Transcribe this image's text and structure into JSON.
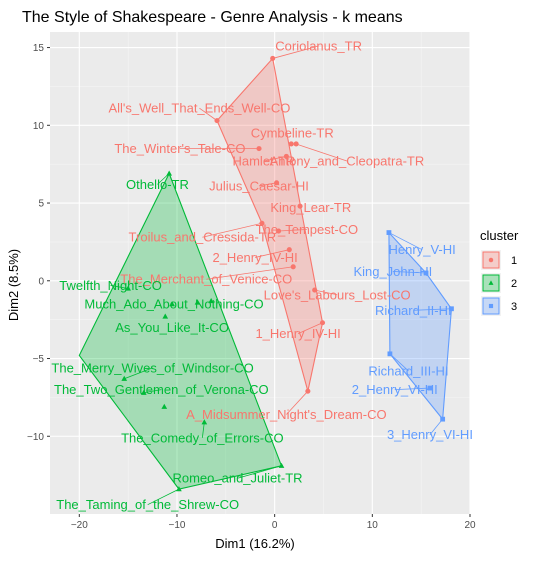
{
  "chart_data": {
    "type": "scatter",
    "title": "The Style of Shakespeare - Genre Analysis - k means",
    "xlabel": "Dim1 (16.2%)",
    "ylabel": "Dim2 (8.5%)",
    "xlim": [
      -23,
      20
    ],
    "ylim": [
      -15,
      16
    ],
    "xticks": [
      -20,
      -10,
      0,
      10,
      20
    ],
    "yticks": [
      -10,
      -5,
      0,
      5,
      10,
      15
    ],
    "grid": true,
    "legend": {
      "title": "cluster",
      "position": "right"
    },
    "series": [
      {
        "name": "1",
        "marker": "circle",
        "color": "#F8766D",
        "points": [
          {
            "label": "Coriolanus_TR",
            "x": -0.2,
            "y": 14.3,
            "lx": 4.5,
            "ly": 15.1
          },
          {
            "label": "All's_Well_That_Ends_Well-CO",
            "x": -5.9,
            "y": 10.3,
            "lx": -7.7,
            "ly": 11.1
          },
          {
            "label": "Cymbeline-TR",
            "x": 1.7,
            "y": 8.8,
            "lx": 1.8,
            "ly": 9.5
          },
          {
            "label": "The_Winter's_Tale-CO",
            "x": -1.6,
            "y": 8.5,
            "lx": -9.7,
            "ly": 8.5
          },
          {
            "label": "Hamlet-TR",
            "x": 1.2,
            "y": 8.0,
            "lx": -1.1,
            "ly": 7.7
          },
          {
            "label": "Antony_and_Cleopatra-TR",
            "x": 2.2,
            "y": 8.8,
            "lx": 7.4,
            "ly": 7.7
          },
          {
            "label": "Julius_Caesar-HI",
            "x": 0.2,
            "y": 6.3,
            "lx": -1.6,
            "ly": 6.1
          },
          {
            "label": "King_Lear-TR",
            "x": 2.6,
            "y": 4.8,
            "lx": 3.7,
            "ly": 4.7
          },
          {
            "label": "Troilus_and_Cressida-TR",
            "x": -1.3,
            "y": 3.7,
            "lx": -7.4,
            "ly": 2.8
          },
          {
            "label": "The_Tempest-CO",
            "x": 0.4,
            "y": 3.2,
            "lx": 3.3,
            "ly": 3.3
          },
          {
            "label": "2_Henry_IV-HI",
            "x": 1.5,
            "y": 2.0,
            "lx": -2.0,
            "ly": 1.5
          },
          {
            "label": "The_Merchant_of_Venice-CO",
            "x": 1.9,
            "y": 0.9,
            "lx": -7.0,
            "ly": 0.1
          },
          {
            "label": "Love's_Labours_Lost-CO",
            "x": 4.1,
            "y": -0.6,
            "lx": 6.4,
            "ly": -0.9
          },
          {
            "label": "1_Henry_IV-HI",
            "x": 4.9,
            "y": -2.7,
            "lx": 2.4,
            "ly": -3.4
          },
          {
            "label": "A_Midsummer_Night's_Dream-CO",
            "x": 3.4,
            "y": -7.1,
            "lx": 1.2,
            "ly": -8.6
          }
        ],
        "hull": [
          [
            -0.2,
            14.3
          ],
          [
            4.9,
            -2.7
          ],
          [
            3.4,
            -7.1
          ],
          [
            -1.3,
            3.7
          ],
          [
            -5.9,
            10.3
          ]
        ]
      },
      {
        "name": "2",
        "marker": "triangle",
        "color": "#00BA38",
        "points": [
          {
            "label": "Othello-TR",
            "x": -10.8,
            "y": 6.9,
            "lx": -12.0,
            "ly": 6.2
          },
          {
            "label": "Twelfth_Night-CO",
            "x": -15.0,
            "y": -0.5,
            "lx": -16.8,
            "ly": -0.3
          },
          {
            "label": "Much_Ado_About_Nothing-CO",
            "x": -10.5,
            "y": -1.5,
            "lx": -10.3,
            "ly": -1.5
          },
          {
            "label": "As_You_Like_It-CO",
            "x": -11.2,
            "y": -2.3,
            "lx": -10.5,
            "ly": -3.0
          },
          {
            "label": "The_Merry_Wives_of_Windsor-CO",
            "x": -15.4,
            "y": -6.3,
            "lx": -12.5,
            "ly": -5.6
          },
          {
            "label": "The_Two_Gentlemen_of_Verona-CO",
            "x": -13.4,
            "y": -7.2,
            "lx": -11.6,
            "ly": -7.0
          },
          {
            "label": "The_Comedy_of_Errors-CO",
            "x": -7.2,
            "y": -9.1,
            "lx": -7.4,
            "ly": -10.1
          },
          {
            "label": "The_Taming_of_the_Shrew-CO",
            "x": -9.8,
            "y": -13.4,
            "lx": -13.0,
            "ly": -14.4
          },
          {
            "label": "Romeo_and_Juliet-TR",
            "x": 0.7,
            "y": -11.9,
            "lx": -3.8,
            "ly": -12.7
          },
          {
            "label": "",
            "x": -7.9,
            "y": -1.4
          },
          {
            "label": "",
            "x": -6.5,
            "y": -1.3
          },
          {
            "label": "",
            "x": -11.3,
            "y": -8.1
          }
        ],
        "hull": [
          [
            -10.8,
            6.9
          ],
          [
            0.7,
            -11.9
          ],
          [
            -9.8,
            -13.4
          ],
          [
            -20.0,
            -4.8
          ]
        ]
      },
      {
        "name": "3",
        "marker": "square",
        "color": "#619CFF",
        "points": [
          {
            "label": "Henry_V-HI",
            "x": 11.7,
            "y": 3.1,
            "lx": 15.1,
            "ly": 2.0
          },
          {
            "label": "King_John-HI",
            "x": 15.5,
            "y": 0.5,
            "lx": 12.1,
            "ly": 0.6
          },
          {
            "label": "Richard_II-HI",
            "x": 18.1,
            "y": -1.8,
            "lx": 14.2,
            "ly": -1.9
          },
          {
            "label": "Richard_III-HI",
            "x": 11.8,
            "y": -4.7,
            "lx": 13.7,
            "ly": -5.8
          },
          {
            "label": "2_Henry_VI-HI",
            "x": 15.9,
            "y": -6.9,
            "lx": 12.3,
            "ly": -7.0
          },
          {
            "label": "3_Henry_VI-HI",
            "x": 17.2,
            "y": -8.9,
            "lx": 15.9,
            "ly": -9.9
          }
        ],
        "hull": [
          [
            11.7,
            3.1
          ],
          [
            15.5,
            0.5
          ],
          [
            18.1,
            -1.8
          ],
          [
            17.2,
            -8.9
          ],
          [
            11.8,
            -4.7
          ]
        ]
      }
    ]
  }
}
